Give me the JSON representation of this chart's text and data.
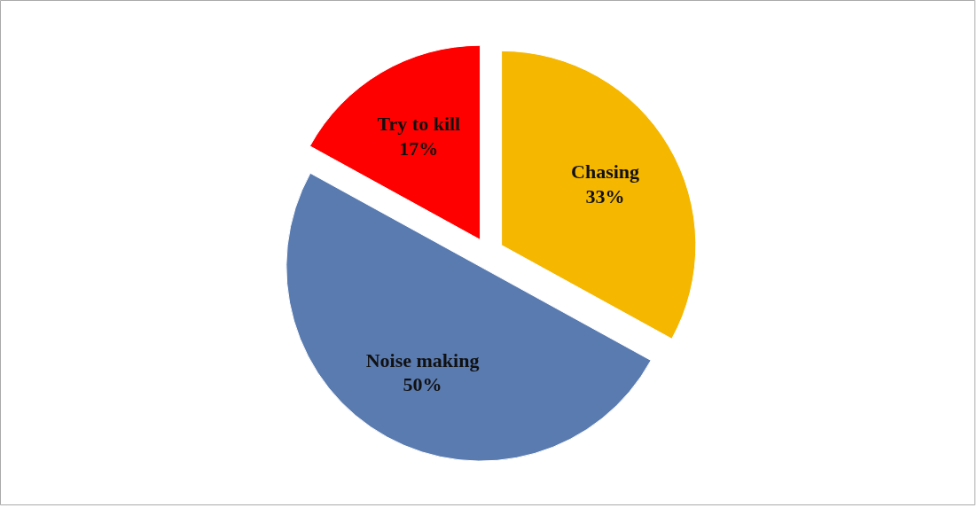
{
  "chart_data": {
    "type": "pie",
    "categories": [
      "Chasing",
      "Noise making",
      "Try to kill"
    ],
    "values": [
      33,
      50,
      17
    ],
    "value_labels": [
      "33%",
      "50%",
      "17%"
    ],
    "colors": [
      "#f5b700",
      "#5a7bb0",
      "#ff0000"
    ]
  }
}
